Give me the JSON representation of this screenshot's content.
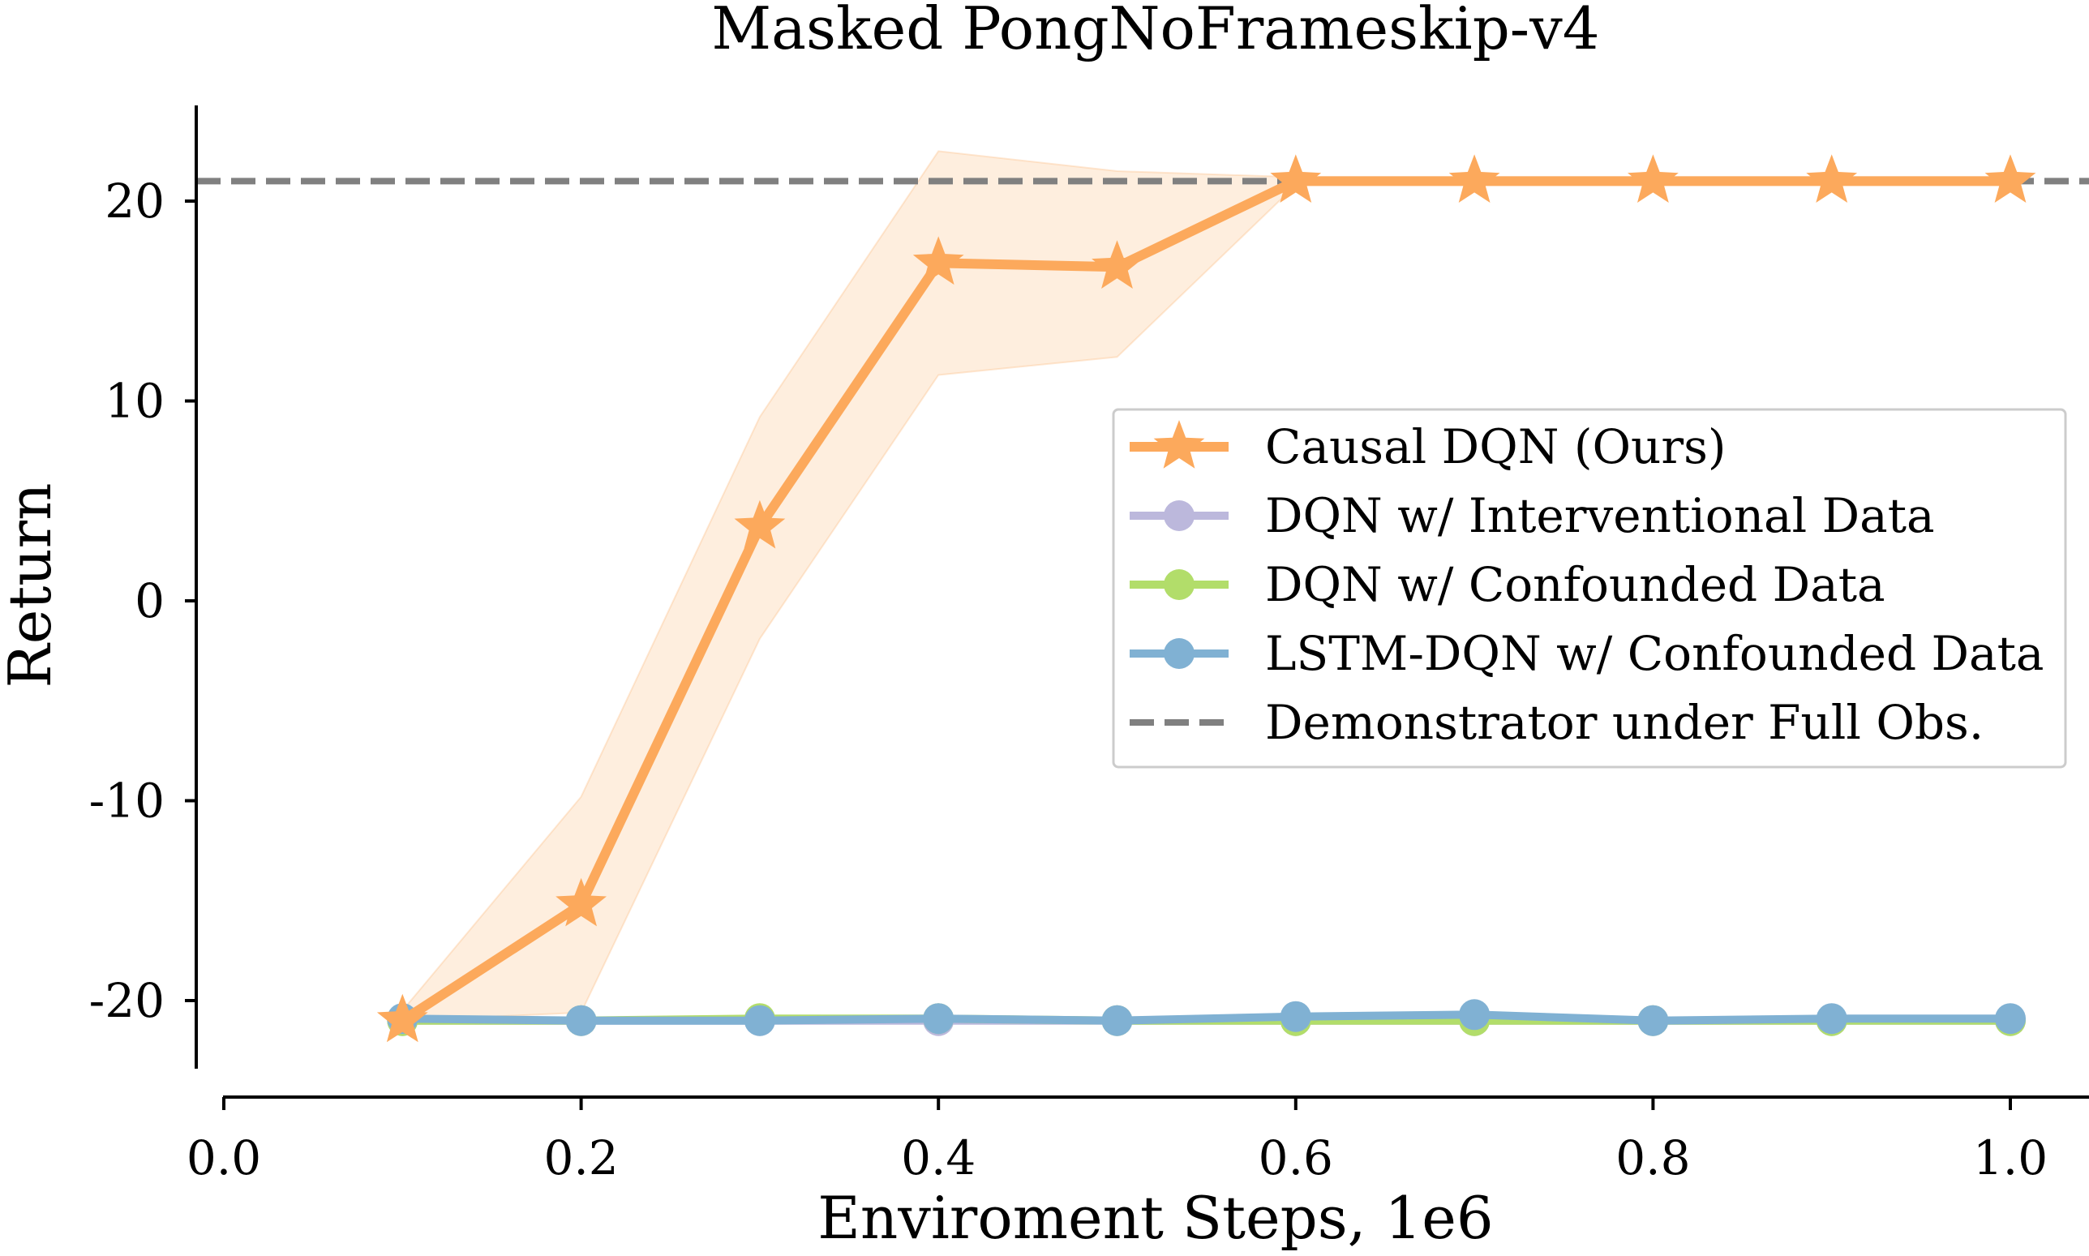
{
  "chart_data": {
    "type": "line",
    "title": "Masked PongNoFrameskip-v4",
    "xlabel": "Enviroment Steps, 1e6",
    "ylabel": "Return",
    "xlim": [
      0.0,
      1.05
    ],
    "ylim": [
      -23.5,
      24.5
    ],
    "xticks": [
      0.0,
      0.2,
      0.4,
      0.6,
      0.8,
      1.0
    ],
    "xtick_labels": [
      "0.0",
      "0.2",
      "0.4",
      "0.6",
      "0.8",
      "1.0"
    ],
    "yticks": [
      -20,
      -10,
      0,
      10,
      20
    ],
    "ytick_labels": [
      "-20",
      "-10",
      "0",
      "10",
      "20"
    ],
    "grid": false,
    "legend_position": "center-right",
    "x": [
      0.1,
      0.2,
      0.3,
      0.4,
      0.5,
      0.6,
      0.7,
      0.8,
      0.9,
      1.0
    ],
    "series": [
      {
        "name": "Causal DQN (Ours)",
        "color": "#fca95c",
        "marker": "star",
        "values": [
          -21,
          -15.2,
          3.7,
          16.9,
          16.7,
          21,
          21,
          21,
          21,
          21
        ],
        "band_upper": [
          -20.5,
          -9.8,
          9.2,
          22.5,
          21.5,
          21.2,
          21.2,
          21.2,
          21.2,
          21.2
        ],
        "band_lower": [
          -21,
          -20.6,
          -1.9,
          11.3,
          12.2,
          20.8,
          20.8,
          20.8,
          20.8,
          20.8
        ]
      },
      {
        "name": "DQN w/ Interventional Data",
        "color": "#bcb8dc",
        "marker": "circle",
        "values": [
          -21,
          -21,
          -21,
          -21,
          -21,
          -21,
          -21,
          -21,
          -21,
          -21
        ]
      },
      {
        "name": "DQN w/ Confounded Data",
        "color": "#b2dd6a",
        "marker": "circle",
        "values": [
          -21,
          -21,
          -20.9,
          -20.9,
          -21,
          -21,
          -21,
          -21,
          -21,
          -21
        ]
      },
      {
        "name": "LSTM-DQN w/ Confounded Data",
        "color": "#80b1d3",
        "marker": "circle",
        "values": [
          -20.9,
          -21,
          -21,
          -20.9,
          -21,
          -20.8,
          -20.7,
          -21,
          -20.9,
          -20.9
        ]
      }
    ],
    "reference_line": {
      "name": "Demonstrator under Full Obs.",
      "color": "#808080",
      "style": "dashed",
      "y": 21
    }
  }
}
